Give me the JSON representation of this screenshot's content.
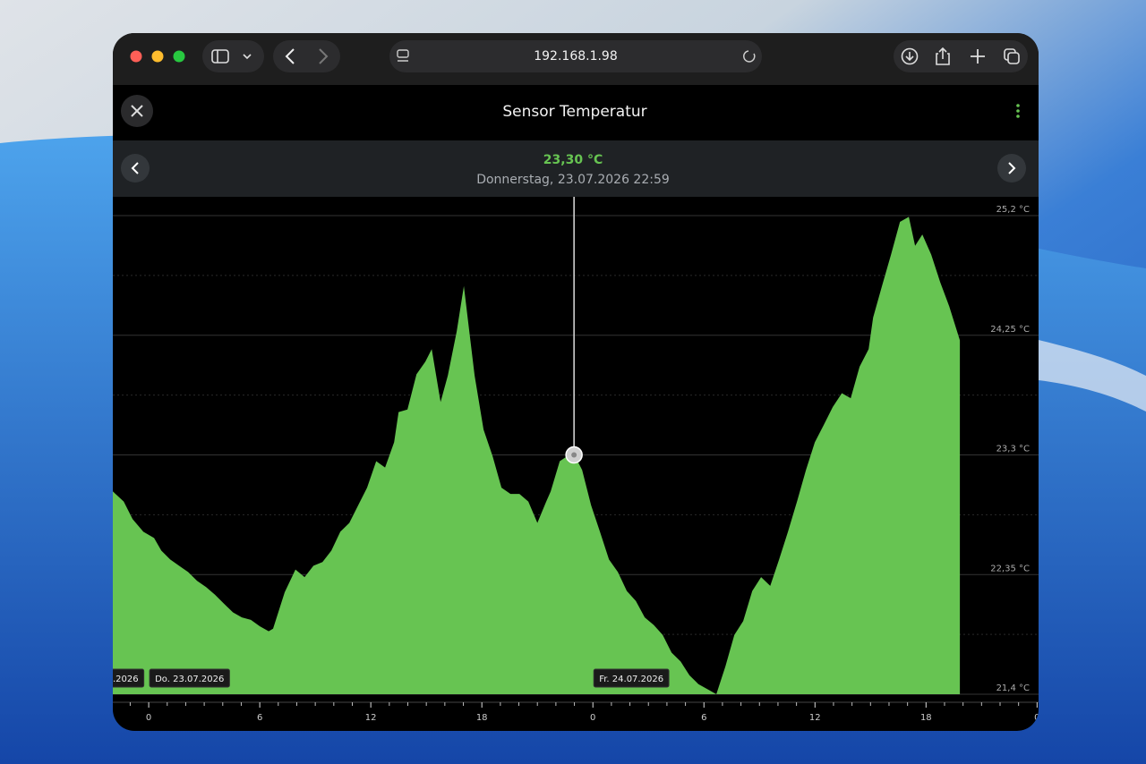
{
  "browser": {
    "url": "192.168.1.98"
  },
  "header": {
    "title": "Sensor Temperatur"
  },
  "chart_data": {
    "type": "area",
    "color": "#67c452",
    "x": [
      -1.94,
      -1.35,
      -0.87,
      -0.29,
      0.29,
      0.68,
      1.16,
      1.64,
      2.13,
      2.61,
      3.1,
      3.58,
      4.06,
      4.55,
      5.03,
      5.52,
      6.0,
      6.48,
      6.72,
      7.35,
      7.93,
      8.42,
      8.9,
      9.39,
      9.87,
      10.35,
      10.84,
      11.32,
      11.8,
      12.29,
      12.77,
      13.26,
      13.5,
      13.98,
      14.47,
      14.95,
      15.29,
      15.77,
      16.16,
      16.64,
      17.03,
      17.61,
      18.09,
      18.58,
      19.06,
      19.55,
      20.03,
      20.51,
      21.0,
      21.48,
      21.72,
      22.21,
      22.93,
      23.42,
      23.9,
      24.38,
      24.87,
      25.35,
      25.83,
      26.32,
      26.8,
      27.29,
      27.77,
      28.25,
      28.74,
      29.22,
      29.7,
      30.19,
      30.67,
      31.16,
      31.64,
      32.12,
      32.61,
      33.09,
      33.58,
      34.06,
      34.54,
      35.03,
      35.51,
      35.99,
      36.48,
      36.96,
      37.45,
      37.93,
      38.41,
      38.9,
      39.14,
      39.62,
      40.11,
      40.59,
      41.07,
      41.41,
      41.8,
      42.28,
      42.77,
      43.25,
      43.83
    ],
    "y": [
      23.01,
      22.93,
      22.79,
      22.69,
      22.64,
      22.54,
      22.47,
      22.42,
      22.37,
      22.3,
      22.25,
      22.19,
      22.12,
      22.05,
      22.01,
      21.99,
      21.94,
      21.9,
      21.92,
      22.21,
      22.39,
      22.33,
      22.42,
      22.45,
      22.54,
      22.69,
      22.76,
      22.9,
      23.04,
      23.25,
      23.2,
      23.4,
      23.64,
      23.66,
      23.94,
      24.04,
      24.14,
      23.72,
      23.93,
      24.28,
      24.64,
      23.93,
      23.5,
      23.29,
      23.04,
      22.99,
      22.99,
      22.93,
      22.76,
      22.93,
      23.01,
      23.25,
      23.32,
      23.18,
      22.9,
      22.69,
      22.47,
      22.37,
      22.22,
      22.14,
      22.01,
      21.95,
      21.87,
      21.73,
      21.66,
      21.55,
      21.48,
      21.44,
      21.4,
      21.62,
      21.87,
      21.98,
      22.22,
      22.33,
      22.26,
      22.47,
      22.69,
      22.93,
      23.18,
      23.4,
      23.54,
      23.68,
      23.79,
      23.75,
      24.0,
      24.14,
      24.39,
      24.64,
      24.89,
      25.15,
      25.19,
      24.96,
      25.05,
      24.89,
      24.67,
      24.48,
      24.21
    ],
    "xlim": [
      -1.94,
      48.08
    ],
    "ylim": [
      21.4,
      25.2
    ],
    "yticks": [
      {
        "value": 21.4,
        "label": "21,4 °C"
      },
      {
        "value": 22.35,
        "label": "22,35 °C"
      },
      {
        "value": 23.3,
        "label": "23,3 °C"
      },
      {
        "value": 24.25,
        "label": "24,25 °C"
      },
      {
        "value": 25.2,
        "label": "25,2 °C"
      }
    ],
    "minor_yticks": [
      21.875,
      22.825,
      23.775,
      24.725
    ],
    "xticks": [
      0,
      6,
      12,
      18,
      {
        "value": 24,
        "label": "0"
      },
      {
        "value": 30,
        "label": "6"
      },
      {
        "value": 36,
        "label": "12"
      },
      {
        "value": 42,
        "label": "18"
      },
      {
        "value": 48,
        "label": "0"
      }
    ],
    "minor_xticks": [
      -1,
      1,
      2,
      3,
      4,
      5,
      7,
      8,
      9,
      10,
      11,
      13,
      14,
      15,
      16,
      17,
      19,
      20,
      21,
      22,
      23,
      25,
      26,
      27,
      28,
      29,
      31,
      32,
      33,
      34,
      35,
      37,
      38,
      39,
      40,
      41,
      43,
      44,
      45,
      46,
      47
    ],
    "date_labels": [
      {
        "x": 0,
        "label": "Do. 23.07.2026"
      },
      {
        "x": 24,
        "label": "Fr. 24.07.2026"
      }
    ],
    "clipped_date_label": ".2026",
    "grid": true,
    "cursor": {
      "x": 22.98,
      "y": 23.3,
      "value_label": "23,30 °C",
      "date_label": "Donnerstag, 23.07.2026 22:59"
    }
  }
}
